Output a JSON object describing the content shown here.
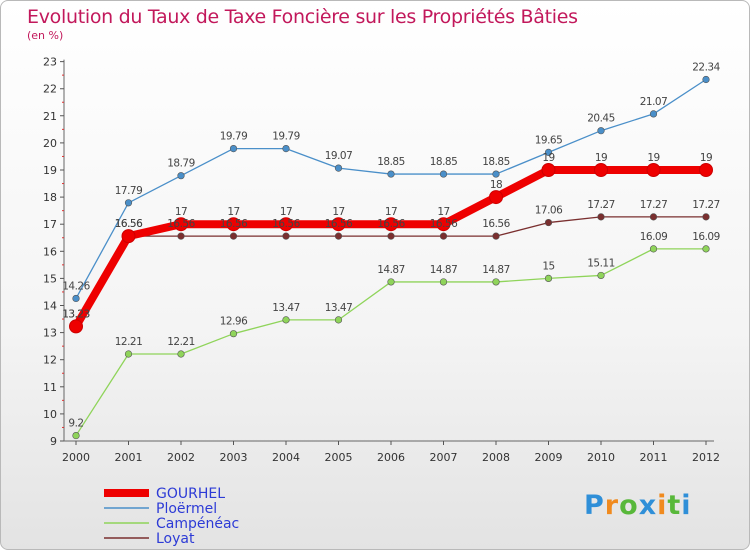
{
  "chart_data": {
    "type": "line",
    "title": "Evolution du Taux de Taxe Foncière sur les Propriétés Bâties",
    "subtitle": "(en %)",
    "x": [
      "2000",
      "2001",
      "2002",
      "2003",
      "2004",
      "2005",
      "2006",
      "2007",
      "2008",
      "2009",
      "2010",
      "2011",
      "2012"
    ],
    "ylim": [
      9,
      23
    ],
    "yticks": [
      9,
      10,
      11,
      12,
      13,
      14,
      15,
      16,
      17,
      18,
      19,
      20,
      21,
      22,
      23
    ],
    "grid": false,
    "legend_position": "bottom-left",
    "series": [
      {
        "name": "GOURHEL",
        "color": "#ee0000",
        "values": [
          13.23,
          16.56,
          17,
          17,
          17,
          17,
          17,
          17,
          18,
          19,
          19,
          19,
          19
        ],
        "labels": [
          "13.23",
          "16.56",
          "17",
          "17",
          "17",
          "17",
          "17",
          "17",
          "18",
          "19",
          "19",
          "19",
          "19"
        ]
      },
      {
        "name": "Ploërmel",
        "color": "#4a8fc9",
        "values": [
          14.26,
          17.79,
          18.79,
          19.79,
          19.79,
          19.07,
          18.85,
          18.85,
          18.85,
          19.65,
          20.45,
          21.07,
          22.34
        ],
        "labels": [
          "14.26",
          "17.79",
          "18.79",
          "19.79",
          "19.79",
          "19.07",
          "18.85",
          "18.85",
          "18.85",
          "19.65",
          "20.45",
          "21.07",
          "22.34"
        ]
      },
      {
        "name": "Campénéac",
        "color": "#8fd45a",
        "values": [
          9.2,
          12.21,
          12.21,
          12.96,
          13.47,
          13.47,
          14.87,
          14.87,
          14.87,
          15,
          15.11,
          16.09,
          16.09
        ],
        "labels": [
          "9.2",
          "12.21",
          "12.21",
          "12.96",
          "13.47",
          "13.47",
          "14.87",
          "14.87",
          "14.87",
          "15",
          "15.11",
          "16.09",
          "16.09"
        ]
      },
      {
        "name": "Loyat",
        "color": "#7a2f2f",
        "values": [
          13.23,
          16.56,
          16.56,
          16.56,
          16.56,
          16.56,
          16.56,
          16.56,
          16.56,
          17.06,
          17.27,
          17.27,
          17.27
        ],
        "labels": [
          "13.23",
          "16.56",
          "16.56",
          "16.56",
          "16.56",
          "16.56",
          "16.56",
          "16.56",
          "16.56",
          "17.06",
          "17.27",
          "17.27",
          "17.27"
        ]
      }
    ]
  },
  "logo": {
    "letters": [
      "P",
      "r",
      "o",
      "x",
      "i",
      "t",
      "i"
    ],
    "colors": [
      "#2f8fd8",
      "#f08a1e",
      "#58b83a",
      "#2f8fd8",
      "#f08a1e",
      "#58b83a",
      "#2f8fd8"
    ]
  }
}
